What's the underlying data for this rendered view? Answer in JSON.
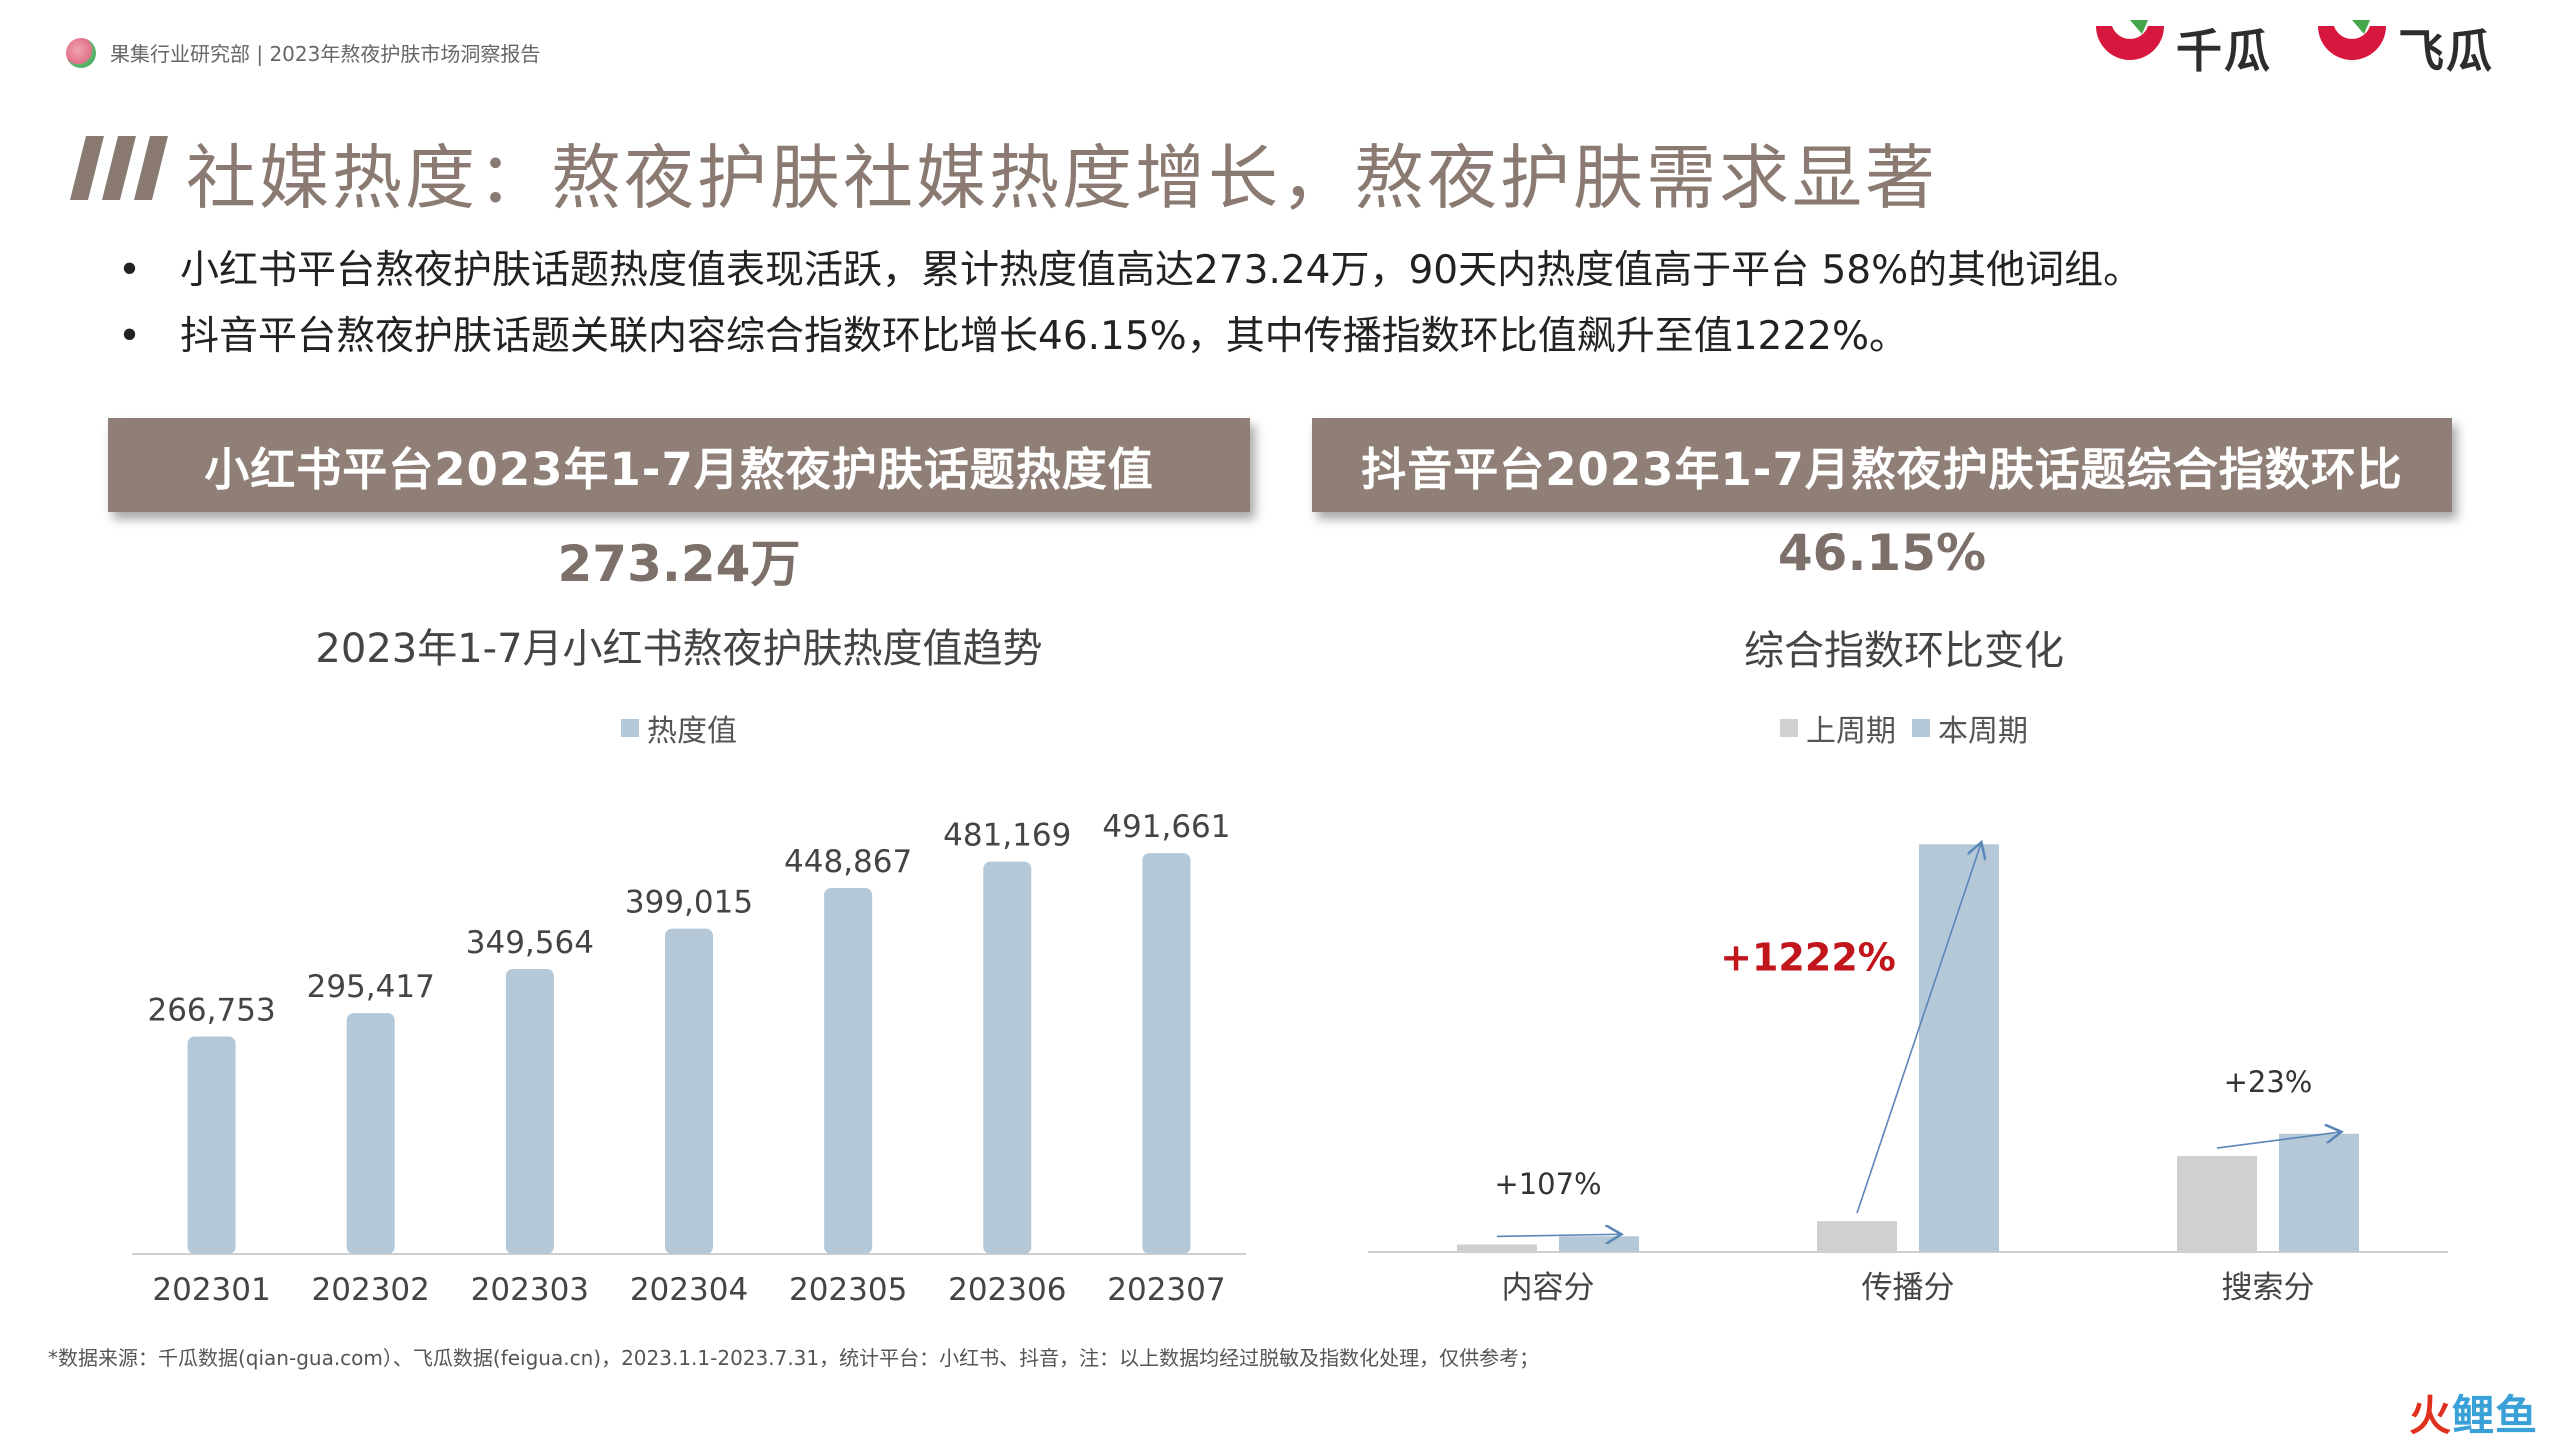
{
  "header": {
    "breadcrumb": "果集行业研究部 | 2023年熬夜护肤市场洞察报告",
    "brands": [
      "千瓜",
      "飞瓜"
    ]
  },
  "title": "社媒热度：熬夜护肤社媒热度增长，熬夜护肤需求显著",
  "bullets": [
    "小红书平台熬夜护肤话题热度值表现活跃，累计热度值高达273.24万，90天内热度值高于平台 58%的其他词组。",
    "抖音平台熬夜护肤话题关联内容综合指数环比增长46.15%，其中传播指数环比值飙升至值1222%。"
  ],
  "bullet_symbol": "•",
  "left_panel": {
    "banner": "小红书平台2023年1-7月熬夜护肤话题热度值",
    "big_number": "273.24万"
  },
  "right_panel": {
    "banner": "抖音平台2023年1-7月熬夜护肤话题综合指数环比",
    "big_number": "46.15%"
  },
  "footnote": "*数据来源：千瓜数据(qian-gua.com）、飞瓜数据(feigua.cn)，2023.1.1-2023.7.31，统计平台：小红书、抖音，注：以上数据均经过脱敏及指数化处理，仅供参考；",
  "corner_brand": "火鲤鱼",
  "colors": {
    "accent_brown": "#8f7f77",
    "bar_blue": "#b4c8d8",
    "bar_gray": "#d0d0d0",
    "highlight_red": "#c0161c",
    "logo_red": "#d8173e",
    "logo_green": "#46a64a"
  },
  "chart_data": [
    {
      "type": "bar",
      "title": "2023年1-7月小红书熬夜护肤热度值趋势",
      "categories": [
        "202301",
        "202302",
        "202303",
        "202304",
        "202305",
        "202306",
        "202307"
      ],
      "series": [
        {
          "name": "热度值",
          "values": [
            266753,
            295417,
            349564,
            399015,
            448867,
            481169,
            491661
          ]
        }
      ],
      "data_labels": [
        "266,753",
        "295,417",
        "349,564",
        "399,015",
        "448,867",
        "481,169",
        "491,661"
      ],
      "ylim": [
        0,
        520000
      ],
      "legend": "top-center",
      "grid": false
    },
    {
      "type": "bar",
      "title": "综合指数环比变化",
      "categories": [
        "内容分",
        "传播分",
        "搜索分"
      ],
      "series": [
        {
          "name": "上周期",
          "values": [
            2.2,
            9,
            28
          ]
        },
        {
          "name": "本周期",
          "values": [
            4.6,
            119,
            34.5
          ]
        }
      ],
      "annotations": [
        "+107%",
        "+1222%",
        "+23%"
      ],
      "ylim": [
        0,
        122
      ],
      "legend": "top-center",
      "grid": false
    }
  ]
}
